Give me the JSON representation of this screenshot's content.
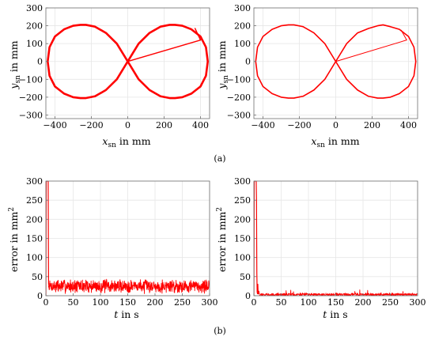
{
  "chart_data": [
    {
      "type": "line",
      "panel": "top-left",
      "xlabel_var": "x",
      "xlabel_sub": "sn",
      "xlabel_unit": "in mm",
      "ylabel_var": "y",
      "ylabel_sub": "sn",
      "ylabel_unit": "in mm",
      "xlim": [
        -450,
        450
      ],
      "ylim": [
        -320,
        300
      ],
      "xticks": [
        -400,
        -200,
        0,
        200,
        400
      ],
      "yticks": [
        -300,
        -200,
        -100,
        0,
        100,
        200,
        300
      ],
      "xticklabels": [
        "−400",
        "−200",
        "0",
        "200",
        "400"
      ],
      "yticklabels": [
        "−300",
        "−200",
        "−100",
        "0",
        "100",
        "200",
        "300"
      ],
      "grid": true,
      "color": "#ff0000",
      "stroke": "thick",
      "series": [
        {
          "x": [
            0,
            60,
            120,
            180,
            230,
            260,
            300,
            350,
            400,
            430,
            440,
            430,
            400,
            350,
            300,
            260,
            230,
            180,
            120,
            60,
            0,
            -60,
            -120,
            -180,
            -230,
            -260,
            -300,
            -350,
            -400,
            -430,
            -440,
            -430,
            -400,
            -350,
            -300,
            -260,
            -230,
            -180,
            -120,
            -60,
            0
          ],
          "y": [
            0,
            100,
            160,
            195,
            205,
            205,
            200,
            180,
            140,
            80,
            0,
            -80,
            -140,
            -180,
            -200,
            -205,
            -205,
            -195,
            -160,
            -100,
            0,
            100,
            160,
            195,
            205,
            205,
            200,
            180,
            140,
            80,
            0,
            -80,
            -140,
            -180,
            -200,
            -205,
            -205,
            -195,
            -160,
            -100,
            0
          ]
        },
        {
          "x": [
            0,
            400,
            370
          ],
          "y": [
            0,
            120,
            185
          ]
        }
      ]
    },
    {
      "type": "line",
      "panel": "top-right",
      "xlabel_var": "x",
      "xlabel_sub": "sn",
      "xlabel_unit": "in mm",
      "ylabel_var": "y",
      "ylabel_sub": "sn",
      "ylabel_unit": "in mm",
      "xlim": [
        -450,
        450
      ],
      "ylim": [
        -320,
        300
      ],
      "xticks": [
        -400,
        -200,
        0,
        200,
        400
      ],
      "yticks": [
        -300,
        -200,
        -100,
        0,
        100,
        200,
        300
      ],
      "xticklabels": [
        "−400",
        "−200",
        "0",
        "200",
        "400"
      ],
      "yticklabels": [
        "−300",
        "−200",
        "−100",
        "0",
        "100",
        "200",
        "300"
      ],
      "grid": true,
      "color": "#ff0000",
      "stroke": "thin",
      "series": [
        {
          "x": [
            0,
            60,
            120,
            180,
            230,
            260,
            300,
            350,
            400,
            430,
            440,
            430,
            400,
            350,
            300,
            260,
            230,
            180,
            120,
            60,
            0,
            -60,
            -120,
            -180,
            -230,
            -260,
            -300,
            -350,
            -400,
            -430,
            -440,
            -430,
            -400,
            -350,
            -300,
            -260,
            -230,
            -180,
            -120,
            -60,
            0
          ],
          "y": [
            0,
            100,
            160,
            185,
            200,
            205,
            195,
            180,
            140,
            80,
            0,
            -80,
            -140,
            -180,
            -200,
            -205,
            -205,
            -195,
            -160,
            -100,
            0,
            100,
            160,
            195,
            205,
            205,
            200,
            180,
            140,
            80,
            0,
            -80,
            -140,
            -180,
            -200,
            -205,
            -205,
            -195,
            -160,
            -100,
            0
          ]
        },
        {
          "x": [
            0,
            390,
            360
          ],
          "y": [
            0,
            120,
            175
          ]
        }
      ]
    },
    {
      "type": "line",
      "panel": "bottom-left",
      "xlabel_var": "t",
      "xlabel_unit": "in s",
      "ylabel_text": "error in mm",
      "ylabel_sup": "2",
      "xlim": [
        0,
        300
      ],
      "ylim": [
        0,
        300
      ],
      "xticks": [
        0,
        50,
        100,
        150,
        200,
        250,
        300
      ],
      "yticks": [
        0,
        50,
        100,
        150,
        200,
        250,
        300
      ],
      "xticklabels": [
        "0",
        "50",
        "100",
        "150",
        "200",
        "250",
        "300"
      ],
      "yticklabels": [
        "0",
        "50",
        "100",
        "150",
        "200",
        "250",
        "300"
      ],
      "grid": true,
      "color": "#ff0000",
      "noise": {
        "seed": 7,
        "start": 5,
        "end": 300,
        "step": 0.45,
        "base": 25,
        "amp": 26,
        "spike_prob": 0.0,
        "spike_amp": 0
      },
      "series": [
        {
          "x": [
            0,
            0.6,
            1.2,
            1.8,
            2.4,
            3.0,
            3.6,
            4.2,
            4.8,
            5.0
          ],
          "y": [
            0,
            300,
            300,
            300,
            300,
            300,
            300,
            300,
            80,
            30
          ]
        }
      ]
    },
    {
      "type": "line",
      "panel": "bottom-right",
      "xlabel_var": "t",
      "xlabel_unit": "in s",
      "ylabel_text": "error in mm",
      "ylabel_sup": "2",
      "xlim": [
        0,
        300
      ],
      "ylim": [
        0,
        300
      ],
      "xticks": [
        0,
        50,
        100,
        150,
        200,
        250,
        300
      ],
      "yticks": [
        0,
        50,
        100,
        150,
        200,
        250,
        300
      ],
      "xticklabels": [
        "0",
        "50",
        "100",
        "150",
        "200",
        "250",
        "300"
      ],
      "yticklabels": [
        "0",
        "50",
        "100",
        "150",
        "200",
        "250",
        "300"
      ],
      "grid": true,
      "color": "#ff0000",
      "noise": {
        "seed": 11,
        "start": 10,
        "end": 300,
        "step": 0.45,
        "base": 3,
        "amp": 6,
        "spike_prob": 0.012,
        "spike_amp": 10
      },
      "series": [
        {
          "x": [
            0,
            0.6,
            1.2,
            1.8,
            2.4,
            3.0,
            3.6,
            4.2,
            4.8,
            5.4,
            6.0,
            6.6,
            7.2,
            7.8,
            8.4,
            9.0,
            9.6,
            10
          ],
          "y": [
            0,
            300,
            300,
            300,
            300,
            300,
            300,
            300,
            250,
            60,
            10,
            5,
            30,
            5,
            8,
            12,
            6,
            4
          ]
        }
      ]
    }
  ],
  "subfigure_labels": [
    "(a)",
    "(b)"
  ]
}
